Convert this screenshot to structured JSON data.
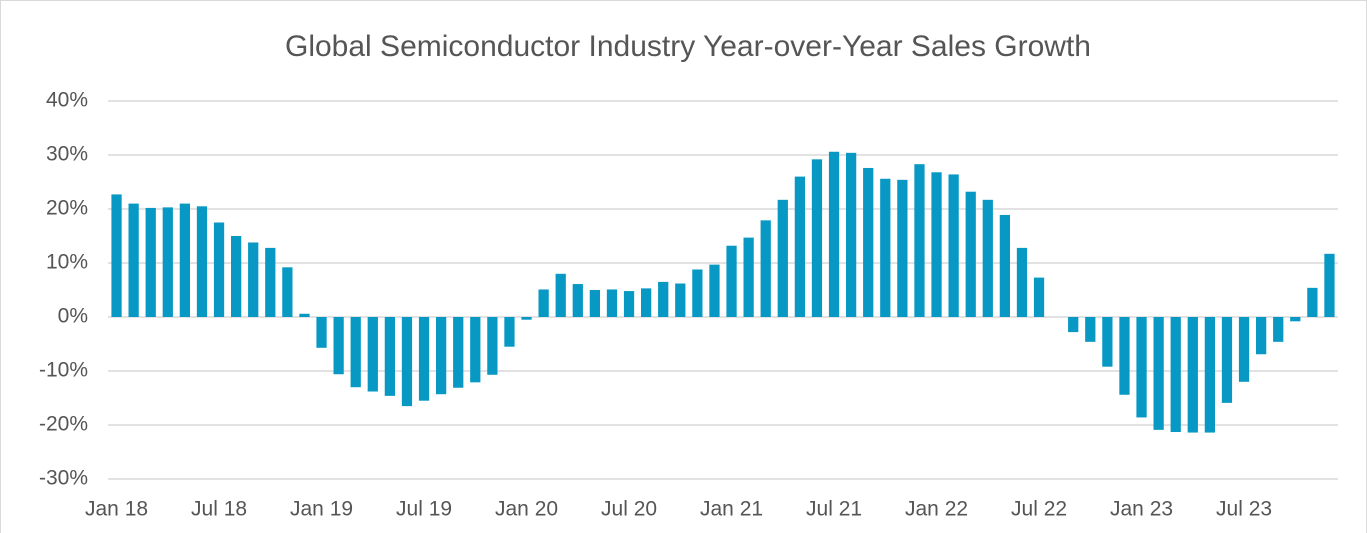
{
  "chart_data": {
    "type": "bar",
    "title": "Global Semiconductor Industry Year-over-Year Sales Growth",
    "categories": [
      "Jan 18",
      null,
      null,
      null,
      null,
      null,
      "Jul 18",
      null,
      null,
      null,
      null,
      null,
      "Jan 19",
      null,
      null,
      null,
      null,
      null,
      "Jul 19",
      null,
      null,
      null,
      null,
      null,
      "Jan 20",
      null,
      null,
      null,
      null,
      null,
      "Jul 20",
      null,
      null,
      null,
      null,
      null,
      "Jan 21",
      null,
      null,
      null,
      null,
      null,
      "Jul 21",
      null,
      null,
      null,
      null,
      null,
      "Jan 22",
      null,
      null,
      null,
      null,
      null,
      "Jul 22",
      null,
      null,
      null,
      null,
      null,
      "Jan 23",
      null,
      null,
      null,
      null,
      null,
      "Jul 23",
      null,
      null,
      null,
      null,
      null
    ],
    "values": [
      22.7,
      21.0,
      20.2,
      20.3,
      21.0,
      20.5,
      17.5,
      15.0,
      13.8,
      12.8,
      9.2,
      0.6,
      -5.7,
      -10.6,
      -13.0,
      -13.8,
      -14.6,
      -16.5,
      -15.5,
      -14.3,
      -13.1,
      -12.1,
      -10.7,
      -5.5,
      -0.5,
      5.1,
      8.0,
      6.1,
      5.0,
      5.1,
      4.8,
      5.3,
      6.5,
      6.2,
      8.8,
      9.7,
      13.2,
      14.7,
      17.9,
      21.7,
      26.0,
      29.2,
      30.6,
      30.4,
      27.6,
      25.6,
      25.4,
      28.3,
      26.8,
      26.4,
      23.2,
      21.7,
      18.9,
      12.8,
      7.3,
      0,
      -2.8,
      -4.6,
      -9.2,
      -14.4,
      -18.6,
      -20.9,
      -21.3,
      -21.4,
      -21.4,
      -15.9,
      -12.0,
      -6.9,
      -4.6,
      -0.8,
      5.4,
      11.7
    ],
    "color": "#0798c4",
    "ylim": [
      -30,
      40
    ],
    "yticks": [
      {
        "value": -30,
        "label": "-30%"
      },
      {
        "value": -20,
        "label": "-20%"
      },
      {
        "value": -10,
        "label": "-10%"
      },
      {
        "value": 0,
        "label": "0%"
      },
      {
        "value": 10,
        "label": "10%"
      },
      {
        "value": 20,
        "label": "20%"
      },
      {
        "value": 30,
        "label": "30%"
      },
      {
        "value": 40,
        "label": "40%"
      }
    ],
    "grid": true
  }
}
